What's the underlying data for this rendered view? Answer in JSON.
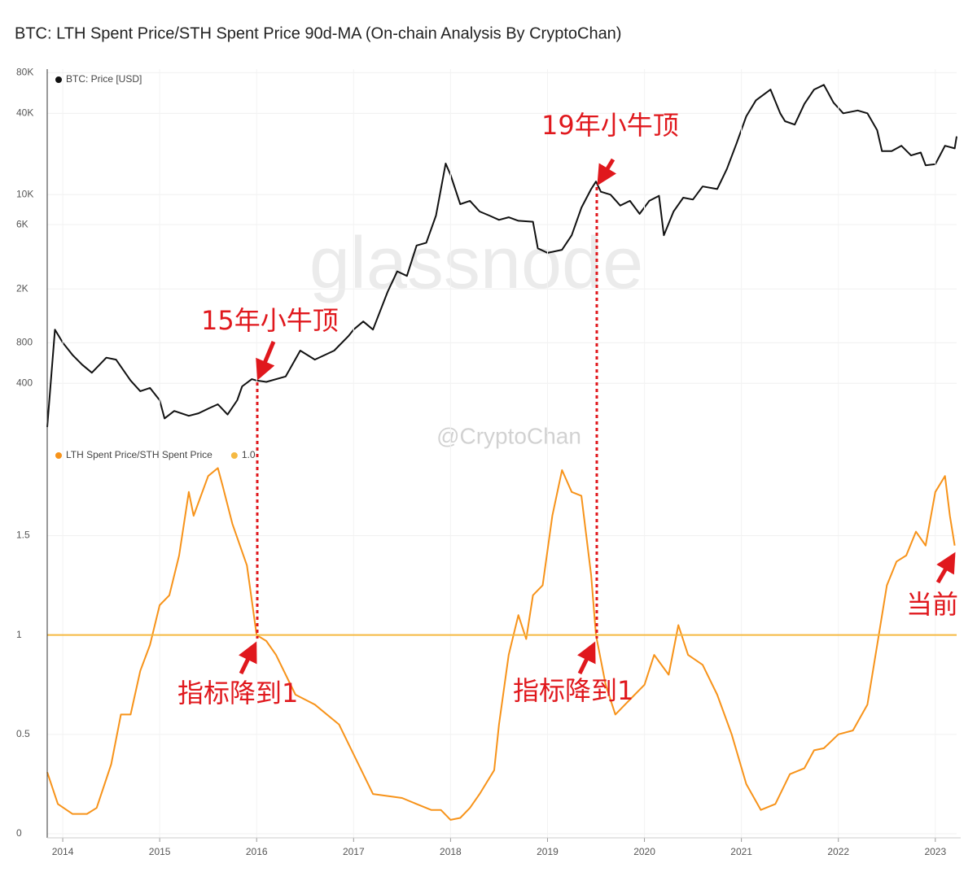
{
  "chart_data": [
    {
      "type": "line",
      "title": "BTC: LTH Spent Price/STH Spent Price 90d-MA (On-chain Analysis By CryptoChan)",
      "log_scale": true,
      "grid": true,
      "xlim": [
        2013.84,
        2023.22
      ],
      "ylim": [
        150,
        85000
      ],
      "yticks": [
        {
          "value": 400,
          "label": "400"
        },
        {
          "value": 800,
          "label": "800"
        },
        {
          "value": 2000,
          "label": "2K"
        },
        {
          "value": 6000,
          "label": "6K"
        },
        {
          "value": 10000,
          "label": "10K"
        },
        {
          "value": 40000,
          "label": "40K"
        },
        {
          "value": 80000,
          "label": "80K"
        }
      ],
      "x": [
        2013.84,
        2013.92,
        2014.0,
        2014.1,
        2014.2,
        2014.3,
        2014.45,
        2014.55,
        2014.7,
        2014.8,
        2014.9,
        2015.0,
        2015.05,
        2015.15,
        2015.3,
        2015.4,
        2015.5,
        2015.6,
        2015.7,
        2015.8,
        2015.85,
        2015.95,
        2016.0,
        2016.1,
        2016.3,
        2016.45,
        2016.6,
        2016.8,
        2016.95,
        2017.0,
        2017.1,
        2017.2,
        2017.35,
        2017.45,
        2017.55,
        2017.65,
        2017.75,
        2017.85,
        2017.95,
        2018.0,
        2018.1,
        2018.2,
        2018.3,
        2018.4,
        2018.5,
        2018.6,
        2018.7,
        2018.85,
        2018.9,
        2019.0,
        2019.15,
        2019.25,
        2019.35,
        2019.45,
        2019.5,
        2019.55,
        2019.65,
        2019.75,
        2019.85,
        2019.95,
        2020.05,
        2020.15,
        2020.2,
        2020.3,
        2020.4,
        2020.5,
        2020.6,
        2020.75,
        2020.85,
        2020.95,
        2021.05,
        2021.15,
        2021.3,
        2021.4,
        2021.45,
        2021.55,
        2021.65,
        2021.75,
        2021.85,
        2021.95,
        2022.05,
        2022.2,
        2022.3,
        2022.4,
        2022.45,
        2022.55,
        2022.65,
        2022.75,
        2022.85,
        2022.9,
        2023.0,
        2023.1,
        2023.2,
        2023.22
      ],
      "series": [
        {
          "name": "BTC: Price [USD]",
          "color": "#111111",
          "values": [
            190,
            1000,
            800,
            650,
            550,
            480,
            620,
            600,
            420,
            350,
            370,
            300,
            220,
            250,
            230,
            240,
            260,
            280,
            235,
            300,
            380,
            430,
            420,
            410,
            450,
            700,
            600,
            700,
            900,
            1000,
            1150,
            1000,
            1900,
            2700,
            2500,
            4200,
            4400,
            7000,
            17000,
            14000,
            8500,
            9000,
            7500,
            7000,
            6500,
            6800,
            6400,
            6300,
            4000,
            3700,
            3900,
            5000,
            8000,
            11000,
            12500,
            10500,
            10000,
            8300,
            9000,
            7200,
            9000,
            9800,
            5000,
            7500,
            9500,
            9200,
            11500,
            11000,
            15500,
            24000,
            38000,
            50000,
            60000,
            40000,
            35000,
            33000,
            47000,
            60000,
            65000,
            48000,
            40000,
            42000,
            40000,
            30000,
            21000,
            21000,
            23000,
            19500,
            20500,
            16500,
            16800,
            23000,
            22000,
            27000
          ]
        }
      ],
      "annotations": [
        "15年小牛顶",
        "19年小牛顶"
      ],
      "watermark": "glassnode"
    },
    {
      "type": "line",
      "grid": true,
      "xlim": [
        2013.84,
        2023.22
      ],
      "xticks": [
        2014,
        2015,
        2016,
        2017,
        2018,
        2019,
        2020,
        2021,
        2022,
        2023
      ],
      "ylim": [
        0,
        1.85
      ],
      "yticks": [
        0,
        0.5,
        1,
        1.5
      ],
      "x": [
        2013.84,
        2013.95,
        2014.1,
        2014.25,
        2014.35,
        2014.5,
        2014.6,
        2014.7,
        2014.8,
        2014.9,
        2015.0,
        2015.1,
        2015.2,
        2015.3,
        2015.35,
        2015.5,
        2015.6,
        2015.65,
        2015.75,
        2015.9,
        2016.0,
        2016.1,
        2016.2,
        2016.4,
        2016.6,
        2016.85,
        2017.0,
        2017.2,
        2017.5,
        2017.65,
        2017.8,
        2017.9,
        2018.0,
        2018.1,
        2018.2,
        2018.3,
        2018.45,
        2018.5,
        2018.6,
        2018.7,
        2018.78,
        2018.85,
        2018.95,
        2019.05,
        2019.15,
        2019.25,
        2019.35,
        2019.45,
        2019.5,
        2019.6,
        2019.7,
        2019.8,
        2019.9,
        2020.0,
        2020.1,
        2020.25,
        2020.35,
        2020.45,
        2020.6,
        2020.75,
        2020.9,
        2021.05,
        2021.2,
        2021.35,
        2021.5,
        2021.65,
        2021.75,
        2021.85,
        2022.0,
        2022.15,
        2022.3,
        2022.4,
        2022.5,
        2022.6,
        2022.7,
        2022.8,
        2022.9,
        2023.0,
        2023.1,
        2023.15,
        2023.2
      ],
      "series": [
        {
          "name": "LTH Spent Price/STH Spent Price",
          "color": "#f7931a",
          "values": [
            0.31,
            0.15,
            0.1,
            0.1,
            0.13,
            0.35,
            0.6,
            0.6,
            0.82,
            0.95,
            1.15,
            1.2,
            1.4,
            1.72,
            1.6,
            1.8,
            1.84,
            1.75,
            1.56,
            1.35,
            1.0,
            0.97,
            0.9,
            0.7,
            0.65,
            0.55,
            0.4,
            0.2,
            0.18,
            0.15,
            0.12,
            0.12,
            0.07,
            0.08,
            0.13,
            0.2,
            0.32,
            0.55,
            0.9,
            1.1,
            0.98,
            1.2,
            1.25,
            1.6,
            1.83,
            1.72,
            1.7,
            1.3,
            1.0,
            0.75,
            0.6,
            0.65,
            0.7,
            0.75,
            0.9,
            0.8,
            1.05,
            0.9,
            0.85,
            0.7,
            0.5,
            0.25,
            0.12,
            0.15,
            0.3,
            0.33,
            0.42,
            0.43,
            0.5,
            0.52,
            0.65,
            0.95,
            1.25,
            1.37,
            1.4,
            1.52,
            1.45,
            1.72,
            1.8,
            1.6,
            1.45
          ]
        }
      ],
      "reference_lines": [
        {
          "name": "1.0",
          "value": 1,
          "color": "#f5b942"
        }
      ],
      "annotations": [
        "指标降到1",
        "指标降到1",
        "当前"
      ],
      "watermark": "@CryptoChan"
    }
  ]
}
